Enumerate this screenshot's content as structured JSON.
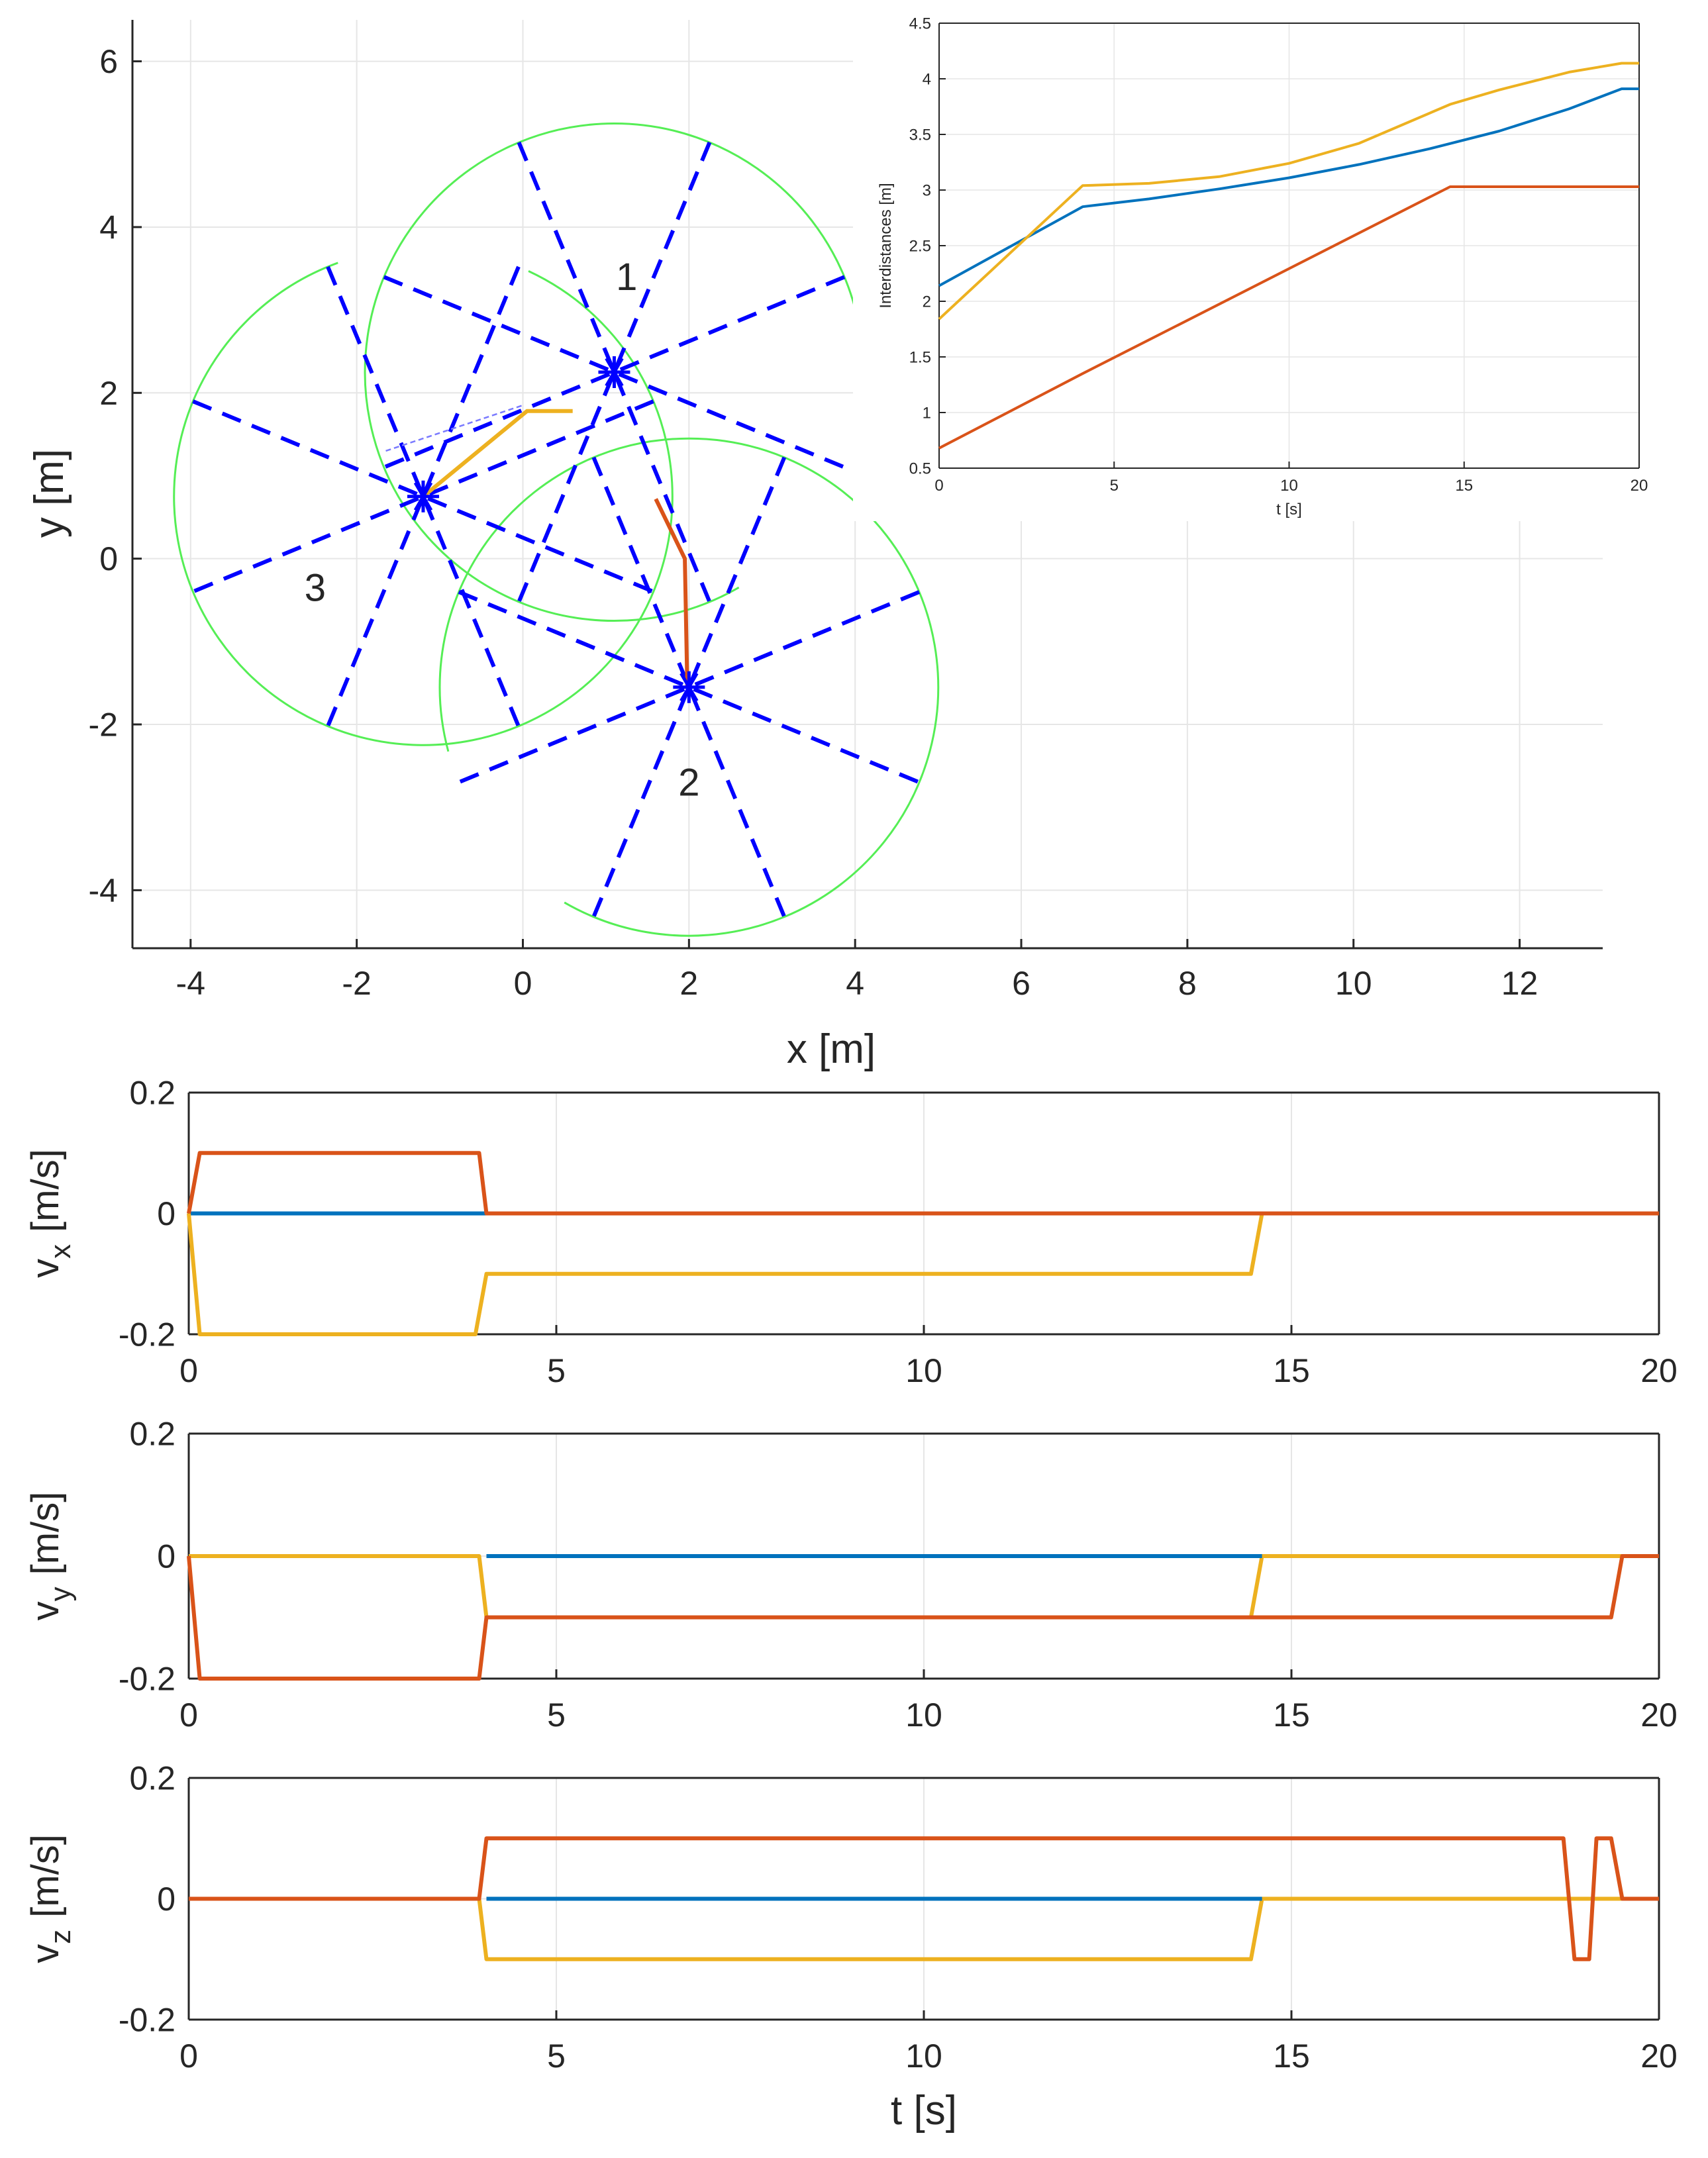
{
  "chart_data": [
    {
      "type": "scatter",
      "id": "trajectory",
      "title": "",
      "xlabel": "x [m]",
      "ylabel": "y [m]",
      "xlim": [
        -4.7,
        13
      ],
      "ylim": [
        -4.7,
        6.5
      ],
      "xticks": [
        -4,
        -2,
        0,
        2,
        4,
        6,
        8,
        10,
        12
      ],
      "xtick_labels": [
        "-4",
        "-2",
        "0",
        "2",
        "4",
        "6",
        "8",
        "10",
        "12"
      ],
      "yticks": [
        -4,
        -2,
        0,
        2,
        4,
        6
      ],
      "ytick_labels": [
        "-4",
        "-2",
        "0",
        "2",
        "4",
        "6"
      ],
      "grid": true,
      "sensor_radius": 3,
      "sensor_ray_angles_deg": [
        22.5,
        67.5,
        112.5,
        157.5
      ],
      "robots": [
        {
          "label": "1",
          "center": [
            1.1,
            2.25
          ],
          "label_pos": [
            1.25,
            3.4
          ],
          "arc_start_deg": -15,
          "arc_end_deg": 300
        },
        {
          "label": "2",
          "center": [
            2.0,
            -1.55
          ],
          "label_pos": [
            2.0,
            -2.7
          ],
          "arc_start_deg": -120,
          "arc_end_deg": 195
        },
        {
          "label": "3",
          "center": [
            -1.2,
            0.75
          ],
          "label_pos": [
            -2.5,
            -0.35
          ],
          "arc_start_deg": 110,
          "arc_end_deg": 425
        }
      ],
      "series": [
        {
          "name": "path-orange",
          "color": "#EDB120",
          "points": [
            [
              0.6,
              1.78
            ],
            [
              0.05,
              1.78
            ],
            [
              -1.2,
              0.75
            ]
          ]
        },
        {
          "name": "path-red",
          "color": "#D95319",
          "points": [
            [
              1.6,
              0.72
            ],
            [
              1.95,
              0.0
            ],
            [
              1.98,
              -1.55
            ]
          ]
        }
      ],
      "link_line": {
        "color": "#7a7aff",
        "points": [
          [
            -1.65,
            1.3
          ],
          [
            0.0,
            1.85
          ]
        ]
      },
      "colors": {
        "sensor": "#0000FF",
        "circle": "#55EE55"
      }
    },
    {
      "type": "line",
      "id": "interdistances",
      "xlabel": "t [s]",
      "ylabel": "Interdistances [m]",
      "xlim": [
        0,
        20
      ],
      "ylim": [
        0.5,
        4.5
      ],
      "xticks": [
        0,
        5,
        10,
        15,
        20
      ],
      "xtick_labels": [
        "0",
        "5",
        "10",
        "15",
        "20"
      ],
      "yticks": [
        0.5,
        1,
        1.5,
        2,
        2.5,
        3,
        3.5,
        4,
        4.5
      ],
      "ytick_labels": [
        "0.5",
        "1",
        "1.5",
        "2",
        "2.5",
        "3",
        "3.5",
        "4",
        "4.5"
      ],
      "grid": true,
      "series": [
        {
          "name": "blue",
          "color": "#0072BD",
          "x": [
            0,
            4.1,
            6,
            8,
            10,
            12,
            14,
            16,
            18,
            19.5,
            20
          ],
          "y": [
            2.14,
            2.85,
            2.92,
            3.01,
            3.11,
            3.23,
            3.37,
            3.53,
            3.73,
            3.91,
            3.91
          ]
        },
        {
          "name": "orange",
          "color": "#D95319",
          "x": [
            0,
            4.1,
            14.6,
            20
          ],
          "y": [
            0.68,
            1.35,
            3.03,
            3.03
          ]
        },
        {
          "name": "yellow",
          "color": "#EDB120",
          "x": [
            0,
            4.1,
            6,
            8,
            10,
            12,
            14.6,
            16,
            18,
            19.5,
            20
          ],
          "y": [
            1.84,
            3.04,
            3.06,
            3.12,
            3.24,
            3.42,
            3.77,
            3.9,
            4.06,
            4.14,
            4.14
          ]
        }
      ]
    },
    {
      "type": "line",
      "id": "vx",
      "xlabel": "",
      "ylabel": "v",
      "ylabel_sub": "x",
      "ylabel_unit": "[m/s]",
      "xlim": [
        0,
        20
      ],
      "ylim": [
        -0.2,
        0.2
      ],
      "xticks": [
        0,
        5,
        10,
        15,
        20
      ],
      "xtick_labels": [
        "0",
        "5",
        "10",
        "15",
        "20"
      ],
      "yticks": [
        -0.2,
        0,
        0.2
      ],
      "ytick_labels": [
        "-0.2",
        "0",
        "0.2"
      ],
      "grid": true,
      "series": [
        {
          "name": "blue",
          "color": "#0072BD",
          "x": [
            0,
            20
          ],
          "y": [
            0,
            0
          ]
        },
        {
          "name": "yellow",
          "color": "#EDB120",
          "x": [
            0,
            0.15,
            3.9,
            4.05,
            14.45,
            14.6,
            20
          ],
          "y": [
            0,
            -0.2,
            -0.2,
            -0.1,
            -0.1,
            0,
            0
          ]
        },
        {
          "name": "orange",
          "color": "#D95319",
          "x": [
            0,
            0.15,
            3.95,
            4.05,
            20
          ],
          "y": [
            0,
            0.1,
            0.1,
            0,
            0
          ]
        }
      ]
    },
    {
      "type": "line",
      "id": "vy",
      "xlabel": "",
      "ylabel": "v",
      "ylabel_sub": "y",
      "ylabel_unit": "[m/s]",
      "xlim": [
        0,
        20
      ],
      "ylim": [
        -0.2,
        0.2
      ],
      "xticks": [
        0,
        5,
        10,
        15,
        20
      ],
      "xtick_labels": [
        "0",
        "5",
        "10",
        "15",
        "20"
      ],
      "yticks": [
        -0.2,
        0,
        0.2
      ],
      "ytick_labels": [
        "-0.2",
        "0",
        "0.2"
      ],
      "grid": true,
      "series": [
        {
          "name": "yellow",
          "color": "#EDB120",
          "x": [
            0,
            3.95,
            4.05,
            14.45,
            14.6,
            20
          ],
          "y": [
            0,
            0,
            -0.1,
            -0.1,
            0,
            0
          ]
        },
        {
          "name": "blue",
          "color": "#0072BD",
          "x": [
            4.05,
            14.6
          ],
          "y": [
            0,
            0
          ]
        },
        {
          "name": "orange",
          "color": "#D95319",
          "x": [
            0,
            0.15,
            3.95,
            4.05,
            19.35,
            19.5,
            20
          ],
          "y": [
            0,
            -0.2,
            -0.2,
            -0.1,
            -0.1,
            0,
            0
          ]
        }
      ]
    },
    {
      "type": "line",
      "id": "vz",
      "xlabel": "t [s]",
      "ylabel": "v",
      "ylabel_sub": "z",
      "ylabel_unit": "[m/s]",
      "xlim": [
        0,
        20
      ],
      "ylim": [
        -0.2,
        0.2
      ],
      "xticks": [
        0,
        5,
        10,
        15,
        20
      ],
      "xtick_labels": [
        "0",
        "5",
        "10",
        "15",
        "20"
      ],
      "yticks": [
        -0.2,
        0,
        0.2
      ],
      "ytick_labels": [
        "-0.2",
        "0",
        "0.2"
      ],
      "grid": true,
      "series": [
        {
          "name": "yellow",
          "color": "#EDB120",
          "x": [
            0,
            3.95,
            4.05,
            14.45,
            14.6,
            20
          ],
          "y": [
            0,
            0,
            -0.1,
            -0.1,
            0,
            0
          ]
        },
        {
          "name": "blue",
          "color": "#0072BD",
          "x": [
            4.05,
            14.6
          ],
          "y": [
            0,
            0
          ]
        },
        {
          "name": "orange",
          "color": "#D95319",
          "x": [
            0,
            3.95,
            4.05,
            18.7,
            18.85,
            19.05,
            19.15,
            19.35,
            19.5,
            20
          ],
          "y": [
            0,
            0,
            0.1,
            0.1,
            -0.1,
            -0.1,
            0.1,
            0.1,
            0,
            0
          ]
        }
      ]
    }
  ]
}
